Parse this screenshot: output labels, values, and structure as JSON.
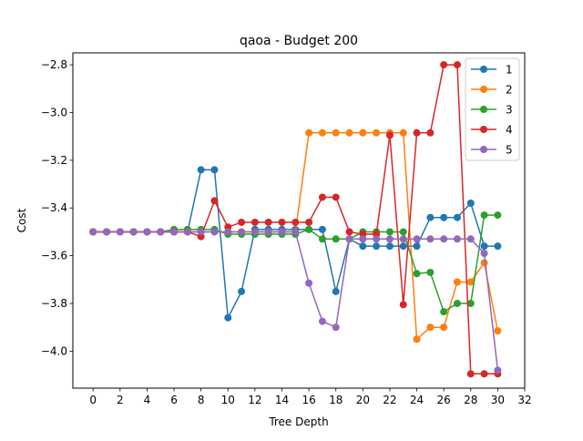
{
  "chart_data": {
    "type": "line",
    "title": "qaoa - Budget  200",
    "xlabel": "Tree Depth",
    "ylabel": "Cost",
    "xlim": [
      -1.5,
      32
    ],
    "ylim": [
      -4.155,
      -2.75
    ],
    "xticks": [
      0,
      2,
      4,
      6,
      8,
      10,
      12,
      14,
      16,
      18,
      20,
      22,
      24,
      26,
      28,
      30,
      32
    ],
    "xtick_labels": [
      "0",
      "2",
      "4",
      "6",
      "8",
      "10",
      "12",
      "14",
      "16",
      "18",
      "20",
      "22",
      "24",
      "26",
      "28",
      "30",
      "32"
    ],
    "yticks": [
      -4.0,
      -3.8,
      -3.6,
      -3.4,
      -3.2,
      -3.0,
      -2.8
    ],
    "ytick_labels": [
      "−4.0",
      "−3.8",
      "−3.6",
      "−3.4",
      "−3.2",
      "−3.0",
      "−2.8"
    ],
    "grid": false,
    "legend_position": "top-right",
    "x": [
      0,
      1,
      2,
      3,
      4,
      5,
      6,
      7,
      8,
      9,
      10,
      11,
      12,
      13,
      14,
      15,
      16,
      17,
      18,
      19,
      20,
      21,
      22,
      23,
      24,
      25,
      26,
      27,
      28,
      29,
      30
    ],
    "series": [
      {
        "name": "1",
        "color": "#1f77b4",
        "values": [
          -3.5,
          -3.5,
          -3.5,
          -3.5,
          -3.5,
          -3.5,
          -3.5,
          -3.5,
          -3.24,
          -3.24,
          -3.86,
          -3.75,
          -3.49,
          -3.49,
          -3.49,
          -3.49,
          -3.49,
          -3.49,
          -3.75,
          -3.53,
          -3.56,
          -3.56,
          -3.56,
          -3.56,
          -3.56,
          -3.44,
          -3.44,
          -3.44,
          -3.38,
          -3.56,
          -3.56
        ]
      },
      {
        "name": "2",
        "color": "#ff7f0e",
        "values": [
          -3.5,
          -3.5,
          -3.5,
          -3.5,
          -3.5,
          -3.5,
          -3.5,
          -3.5,
          -3.5,
          -3.5,
          -3.5,
          -3.5,
          -3.5,
          -3.5,
          -3.5,
          -3.5,
          -3.085,
          -3.085,
          -3.085,
          -3.085,
          -3.085,
          -3.085,
          -3.085,
          -3.085,
          -3.95,
          -3.9,
          -3.9,
          -3.71,
          -3.71,
          -3.63,
          -3.915
        ]
      },
      {
        "name": "3",
        "color": "#2ca02c",
        "values": [
          -3.5,
          -3.5,
          -3.5,
          -3.5,
          -3.5,
          -3.5,
          -3.49,
          -3.49,
          -3.49,
          -3.49,
          -3.51,
          -3.51,
          -3.51,
          -3.51,
          -3.51,
          -3.51,
          -3.49,
          -3.53,
          -3.53,
          -3.53,
          -3.5,
          -3.5,
          -3.5,
          -3.5,
          -3.675,
          -3.67,
          -3.835,
          -3.8,
          -3.8,
          -3.43,
          -3.43
        ]
      },
      {
        "name": "4",
        "color": "#d62728",
        "values": [
          -3.5,
          -3.5,
          -3.5,
          -3.5,
          -3.5,
          -3.5,
          -3.5,
          -3.5,
          -3.52,
          -3.37,
          -3.48,
          -3.46,
          -3.46,
          -3.46,
          -3.46,
          -3.46,
          -3.46,
          -3.355,
          -3.355,
          -3.5,
          -3.51,
          -3.51,
          -3.095,
          -3.805,
          -3.085,
          -3.085,
          -2.8,
          -2.8,
          -4.095,
          -4.095,
          -4.095
        ]
      },
      {
        "name": "5",
        "color": "#9467bd",
        "values": [
          -3.5,
          -3.5,
          -3.5,
          -3.5,
          -3.5,
          -3.5,
          -3.5,
          -3.5,
          -3.5,
          -3.5,
          -3.5,
          -3.5,
          -3.5,
          -3.5,
          -3.5,
          -3.5,
          -3.715,
          -3.875,
          -3.9,
          -3.53,
          -3.53,
          -3.53,
          -3.53,
          -3.53,
          -3.53,
          -3.53,
          -3.53,
          -3.53,
          -3.53,
          -3.59,
          -4.08
        ]
      }
    ]
  }
}
